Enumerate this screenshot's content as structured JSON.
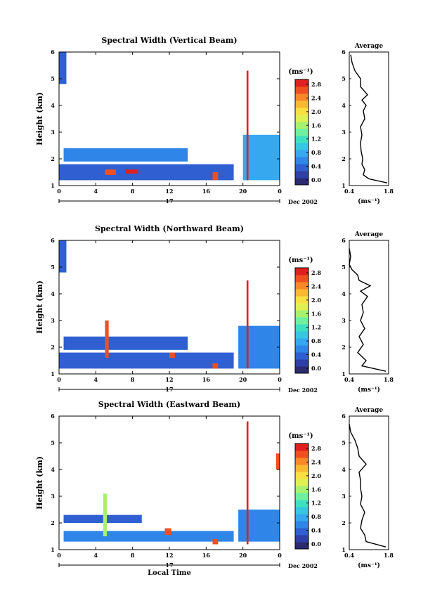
{
  "figure": {
    "common": {
      "time_ticks": [
        "0",
        "4",
        "8",
        "12",
        "16",
        "20",
        "0"
      ],
      "date_label": "Dec 2002",
      "day_label": "17",
      "height_ticks": [
        "1",
        "2",
        "3",
        "4",
        "5",
        "6"
      ],
      "ylabel": "Height (km)",
      "unit_label": "(ms⁻¹)",
      "cbar_ticks": [
        "0.0",
        "0.4",
        "0.8",
        "1.2",
        "1.6",
        "2.0",
        "2.4",
        "2.8"
      ],
      "avg_title": "Average",
      "avg_xticks": [
        "0.4",
        "1.8"
      ],
      "xlabel_bottom": "Local Time"
    },
    "colorscale": [
      "#2b2b6e",
      "#2e3fa8",
      "#2f5fd0",
      "#2f86e8",
      "#35a8f0",
      "#35c8e0",
      "#3ee0c0",
      "#6ef0a0",
      "#a8f070",
      "#e0f050",
      "#f8e040",
      "#f8b830",
      "#f88828",
      "#f05020",
      "#e02020"
    ]
  },
  "chart_data": [
    {
      "type": "heatmap",
      "title": "Spectral Width (Vertical Beam)",
      "xlabel": "",
      "ylabel": "Height (km)",
      "xlim": [
        0,
        24
      ],
      "ylim": [
        1,
        6
      ],
      "colorbar": {
        "label": "(ms⁻¹)",
        "range": [
          0.0,
          3.0
        ]
      },
      "regions": [
        {
          "x0": 0.0,
          "x1": 19.0,
          "y0": 1.2,
          "y1": 1.8,
          "value": 0.6
        },
        {
          "x0": 0.5,
          "x1": 14.0,
          "y0": 1.9,
          "y1": 2.4,
          "value": 0.7
        },
        {
          "x0": 20.0,
          "x1": 24.0,
          "y0": 1.2,
          "y1": 2.9,
          "value": 0.8
        },
        {
          "x0": 0.0,
          "x1": 0.8,
          "y0": 4.8,
          "y1": 6.0,
          "value": 0.6
        },
        {
          "x0": 5.0,
          "x1": 6.2,
          "y0": 1.4,
          "y1": 1.6,
          "value": 2.8
        },
        {
          "x0": 7.2,
          "x1": 8.6,
          "y0": 1.45,
          "y1": 1.6,
          "value": 2.9
        },
        {
          "x0": 16.7,
          "x1": 17.3,
          "y0": 1.2,
          "y1": 1.5,
          "value": 2.8
        },
        {
          "x0": 20.4,
          "x1": 20.6,
          "y0": 1.2,
          "y1": 5.3,
          "value": 2.9
        }
      ],
      "average_profile": {
        "title": "Average",
        "xlabel": "(ms⁻¹)",
        "xlim": [
          0.4,
          1.8
        ],
        "ylim": [
          1,
          6
        ],
        "height": [
          1.1,
          1.25,
          1.4,
          1.6,
          1.8,
          2.0,
          2.3,
          2.6,
          2.9,
          3.2,
          3.5,
          3.8,
          4.0,
          4.2,
          4.4,
          4.7,
          5.0,
          5.3,
          5.6,
          5.9
        ],
        "width": [
          1.75,
          1.1,
          0.9,
          0.95,
          0.85,
          0.88,
          0.82,
          0.8,
          0.85,
          0.8,
          0.95,
          0.9,
          1.0,
          0.85,
          1.05,
          0.8,
          0.8,
          0.6,
          0.5,
          0.45
        ]
      }
    },
    {
      "type": "heatmap",
      "title": "Spectral Width (Northward Beam)",
      "xlabel": "",
      "ylabel": "Height (km)",
      "xlim": [
        0,
        24
      ],
      "ylim": [
        1,
        6
      ],
      "colorbar": {
        "label": "(ms⁻¹)",
        "range": [
          0.0,
          3.0
        ]
      },
      "regions": [
        {
          "x0": 0.0,
          "x1": 19.0,
          "y0": 1.2,
          "y1": 1.8,
          "value": 0.6
        },
        {
          "x0": 0.5,
          "x1": 14.0,
          "y0": 1.9,
          "y1": 2.4,
          "value": 0.6
        },
        {
          "x0": 19.5,
          "x1": 24.0,
          "y0": 1.2,
          "y1": 2.8,
          "value": 0.7
        },
        {
          "x0": 0.0,
          "x1": 0.8,
          "y0": 4.8,
          "y1": 6.0,
          "value": 0.6
        },
        {
          "x0": 5.0,
          "x1": 5.4,
          "y0": 1.6,
          "y1": 3.0,
          "value": 2.6
        },
        {
          "x0": 12.0,
          "x1": 12.6,
          "y0": 1.6,
          "y1": 1.8,
          "value": 2.8
        },
        {
          "x0": 16.7,
          "x1": 17.3,
          "y0": 1.2,
          "y1": 1.4,
          "value": 2.8
        },
        {
          "x0": 20.4,
          "x1": 20.6,
          "y0": 1.2,
          "y1": 4.5,
          "value": 2.9
        }
      ],
      "average_profile": {
        "title": "Average",
        "xlabel": "(ms⁻¹)",
        "xlim": [
          0.4,
          1.8
        ],
        "ylim": [
          1,
          6
        ],
        "height": [
          1.1,
          1.3,
          1.5,
          1.8,
          2.1,
          2.4,
          2.7,
          3.0,
          3.3,
          3.6,
          3.9,
          4.1,
          4.3,
          4.5,
          4.7,
          4.9,
          5.1,
          5.4,
          5.7
        ],
        "width": [
          1.7,
          0.85,
          1.0,
          0.7,
          0.9,
          0.75,
          0.95,
          0.8,
          0.9,
          0.85,
          1.05,
          0.8,
          1.15,
          0.75,
          0.7,
          0.5,
          0.4,
          0.45,
          0.4
        ]
      }
    },
    {
      "type": "heatmap",
      "title": "Spectral Width (Eastward Beam)",
      "xlabel": "Local Time",
      "ylabel": "Height (km)",
      "xlim": [
        0,
        24
      ],
      "ylim": [
        1,
        6
      ],
      "colorbar": {
        "label": "(ms⁻¹)",
        "range": [
          0.0,
          3.0
        ]
      },
      "regions": [
        {
          "x0": 0.5,
          "x1": 19.0,
          "y0": 1.3,
          "y1": 1.7,
          "value": 0.7
        },
        {
          "x0": 0.5,
          "x1": 9.0,
          "y0": 2.0,
          "y1": 2.3,
          "value": 0.6
        },
        {
          "x0": 19.5,
          "x1": 24.0,
          "y0": 1.3,
          "y1": 2.5,
          "value": 0.7
        },
        {
          "x0": 4.8,
          "x1": 5.2,
          "y0": 1.5,
          "y1": 3.1,
          "value": 1.6
        },
        {
          "x0": 11.5,
          "x1": 12.2,
          "y0": 1.55,
          "y1": 1.8,
          "value": 2.8
        },
        {
          "x0": 16.7,
          "x1": 17.3,
          "y0": 1.2,
          "y1": 1.4,
          "value": 2.8
        },
        {
          "x0": 20.4,
          "x1": 20.6,
          "y0": 1.2,
          "y1": 5.8,
          "value": 2.9
        },
        {
          "x0": 23.6,
          "x1": 24.0,
          "y0": 4.0,
          "y1": 4.6,
          "value": 2.6
        }
      ],
      "average_profile": {
        "title": "Average",
        "xlabel": "(ms⁻¹)",
        "xlim": [
          0.4,
          1.8
        ],
        "ylim": [
          1,
          6
        ],
        "height": [
          1.1,
          1.3,
          1.55,
          1.8,
          2.1,
          2.4,
          2.7,
          3.0,
          3.3,
          3.6,
          3.9,
          4.2,
          4.5,
          4.8,
          5.1,
          5.4,
          5.7
        ],
        "width": [
          1.7,
          1.0,
          0.95,
          0.8,
          0.85,
          0.95,
          0.8,
          0.85,
          0.8,
          0.8,
          0.75,
          1.0,
          0.75,
          0.7,
          0.6,
          0.45,
          0.4
        ]
      }
    }
  ]
}
